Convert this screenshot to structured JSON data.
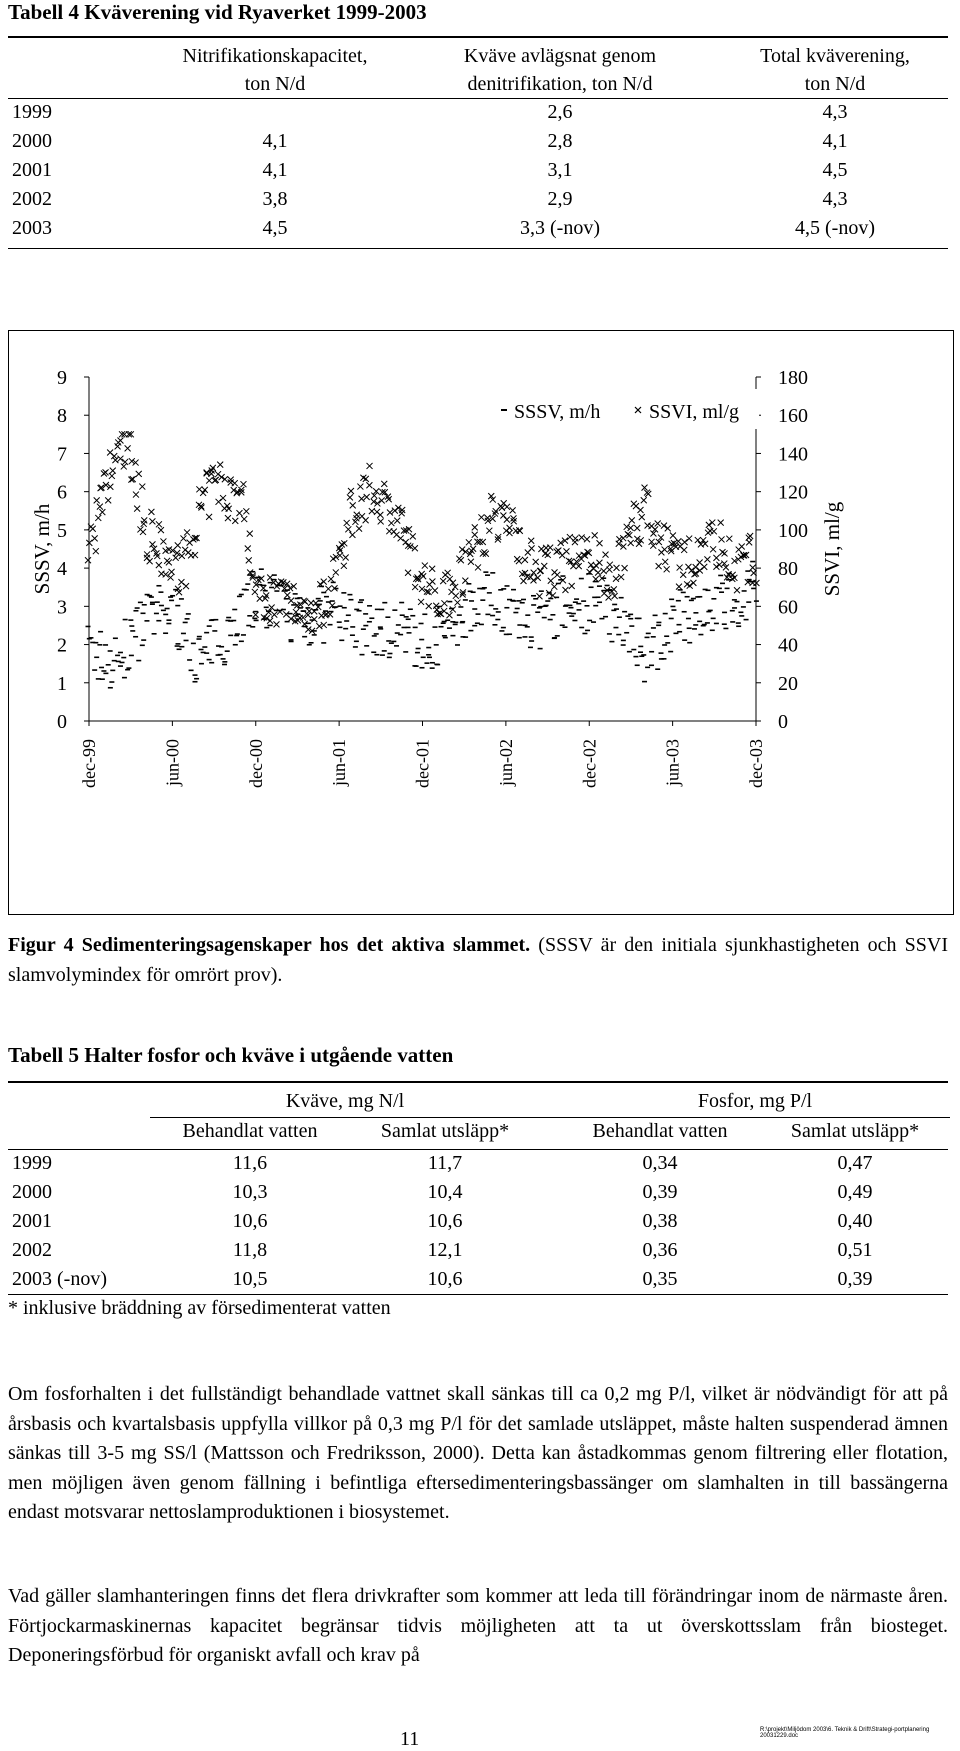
{
  "table4": {
    "title": "Tabell 4 Kväverening vid Ryaverket 1999-2003",
    "headers": [
      [
        "Nitrifikationskapacitet,",
        "ton N/d"
      ],
      [
        "Kväve avlägsnat genom",
        "denitrifikation, ton N/d"
      ],
      [
        "Total kväverening,",
        "ton N/d"
      ]
    ],
    "rows": [
      {
        "year": "1999",
        "nitr": "",
        "denitr": "2,6",
        "total": "4,3"
      },
      {
        "year": "2000",
        "nitr": "4,1",
        "denitr": "2,8",
        "total": "4,1"
      },
      {
        "year": "2001",
        "nitr": "4,1",
        "denitr": "3,1",
        "total": "4,5"
      },
      {
        "year": "2002",
        "nitr": "3,8",
        "denitr": "2,9",
        "total": "4,3"
      },
      {
        "year": "2003",
        "nitr": "4,5",
        "denitr": "3,3 (-nov)",
        "total": "4,5 (-nov)"
      }
    ]
  },
  "chart_data": {
    "type": "scatter",
    "x_ticks": [
      "dec-99",
      "jun-00",
      "dec-00",
      "jun-01",
      "dec-01",
      "jun-02",
      "dec-02",
      "jun-03",
      "dec-03"
    ],
    "y_left_label": "SSSV, m/h",
    "y_right_label": "SSVI, ml/g",
    "y_left_ticks": [
      "0",
      "1",
      "2",
      "3",
      "4",
      "5",
      "6",
      "7",
      "8",
      "9"
    ],
    "y_right_ticks": [
      "0",
      "20",
      "40",
      "60",
      "80",
      "100",
      "120",
      "140",
      "160",
      "180"
    ],
    "ylim_left": [
      0,
      9
    ],
    "ylim_right": [
      0,
      180
    ],
    "xlim": [
      "dec-99",
      "dec-03"
    ],
    "legend_position": "top-right",
    "series": [
      {
        "name": "SSSV, m/h",
        "marker": "dash",
        "axis": "left",
        "x": [
          "1999-12-01",
          "2000-02-01",
          "2000-04-01",
          "2000-06-01",
          "2000-08-01",
          "2000-10-01",
          "2000-12-01",
          "2001-02-01",
          "2001-04-01",
          "2001-06-01",
          "2001-08-01",
          "2001-10-01",
          "2001-12-01",
          "2002-02-01",
          "2002-04-01",
          "2002-06-01",
          "2002-08-01",
          "2002-10-01",
          "2002-12-01",
          "2003-02-01",
          "2003-04-01",
          "2003-06-01",
          "2003-08-01",
          "2003-10-01",
          "2003-12-01"
        ],
        "y": [
          1.8,
          1.5,
          2.6,
          2.9,
          1.6,
          2.4,
          3.3,
          2.9,
          2.7,
          2.9,
          2.3,
          2.5,
          2.0,
          2.4,
          3.3,
          3.0,
          2.5,
          3.0,
          3.1,
          2.8,
          1.8,
          2.5,
          3.0,
          3.1,
          3.5
        ]
      },
      {
        "name": "SSVI, ml/g",
        "marker": "x",
        "axis": "right",
        "x": [
          "1999-12-01",
          "2000-01-01",
          "2000-02-01",
          "2000-03-01",
          "2000-04-01",
          "2000-05-01",
          "2000-06-01",
          "2000-07-01",
          "2000-08-01",
          "2000-09-01",
          "2000-10-01",
          "2000-11-01",
          "2000-12-01",
          "2001-01-01",
          "2001-02-01",
          "2001-03-01",
          "2001-04-01",
          "2001-05-01",
          "2001-06-01",
          "2001-07-01",
          "2001-08-01",
          "2001-09-01",
          "2001-10-01",
          "2001-11-01",
          "2001-12-01",
          "2002-01-01",
          "2002-02-01",
          "2002-03-01",
          "2002-04-01",
          "2002-05-01",
          "2002-06-01",
          "2002-07-01",
          "2002-08-01",
          "2002-09-01",
          "2002-10-01",
          "2002-11-01",
          "2002-12-01",
          "2003-01-01",
          "2003-02-01",
          "2003-03-01",
          "2003-04-01",
          "2003-05-01",
          "2003-06-01",
          "2003-07-01",
          "2003-08-01",
          "2003-09-01",
          "2003-10-01",
          "2003-11-01",
          "2003-12-01"
        ],
        "y": [
          90,
          115,
          140,
          145,
          100,
          90,
          80,
          82,
          110,
          125,
          120,
          115,
          68,
          65,
          62,
          60,
          58,
          62,
          85,
          110,
          120,
          118,
          105,
          90,
          72,
          65,
          70,
          80,
          95,
          105,
          110,
          90,
          80,
          78,
          80,
          85,
          90,
          75,
          80,
          100,
          110,
          95,
          85,
          80,
          90,
          95,
          85,
          80,
          85
        ]
      }
    ]
  },
  "figure4": {
    "caption_bold": "Figur 4 Sedimenteringsagenskaper hos det aktiva slammet.",
    "caption_rest": " (SSSV är den initiala sjunkhastigheten och SSVI slamvolymindex för omrört prov)."
  },
  "table5": {
    "title": "Tabell 5 Halter fosfor och kväve i utgående vatten",
    "group_headers": [
      "Kväve, mg N/l",
      "Fosfor, mg P/l"
    ],
    "sub_headers": [
      "Behandlat vatten",
      "Samlat utsläpp*",
      "Behandlat vatten",
      "Samlat utsläpp*"
    ],
    "rows": [
      {
        "year": "1999",
        "n_beh": "11,6",
        "n_sam": "11,7",
        "p_beh": "0,34",
        "p_sam": "0,47"
      },
      {
        "year": "2000",
        "n_beh": "10,3",
        "n_sam": "10,4",
        "p_beh": "0,39",
        "p_sam": "0,49"
      },
      {
        "year": "2001",
        "n_beh": "10,6",
        "n_sam": "10,6",
        "p_beh": "0,38",
        "p_sam": "0,40"
      },
      {
        "year": "2002",
        "n_beh": "11,8",
        "n_sam": "12,1",
        "p_beh": "0,36",
        "p_sam": "0,51"
      },
      {
        "year": "2003 (-nov)",
        "n_beh": "10,5",
        "n_sam": "10,6",
        "p_beh": "0,35",
        "p_sam": "0,39"
      }
    ],
    "footnote": "* inklusive bräddning av försedimenterat vatten"
  },
  "paragraphs": [
    "Om fosforhalten i det fullständigt behandlade vattnet skall sänkas till ca 0,2 mg P/l, vilket är nödvändigt för att på årsbasis och kvartalsbasis uppfylla villkor på 0,3 mg P/l för det samlade utsläppet, måste halten suspenderad ämnen sänkas till 3-5 mg SS/l (Mattsson och Fredriksson, 2000). Detta kan åstadkommas genom filtrering eller flotation, men möjligen även genom fällning i befintliga eftersedimenteringsbassänger om slamhalten in till bassängerna endast motsvarar nettoslamproduktionen i biosystemet.",
    "Vad gäller slamhanteringen finns det flera drivkrafter som kommer att leda till förändringar inom de närmaste åren. Förtjockarmaskinernas kapacitet begränsar tidvis möjligheten att ta ut överskottsslam från biosteget. Deponeringsförbud för organiskt avfall och krav på"
  ],
  "footer": {
    "page_number": "11",
    "file_path": "R:\\projekt\\Miljödom 2003\\6. Teknik & Drift\\Strategi-portplanering 20031229.doc"
  }
}
